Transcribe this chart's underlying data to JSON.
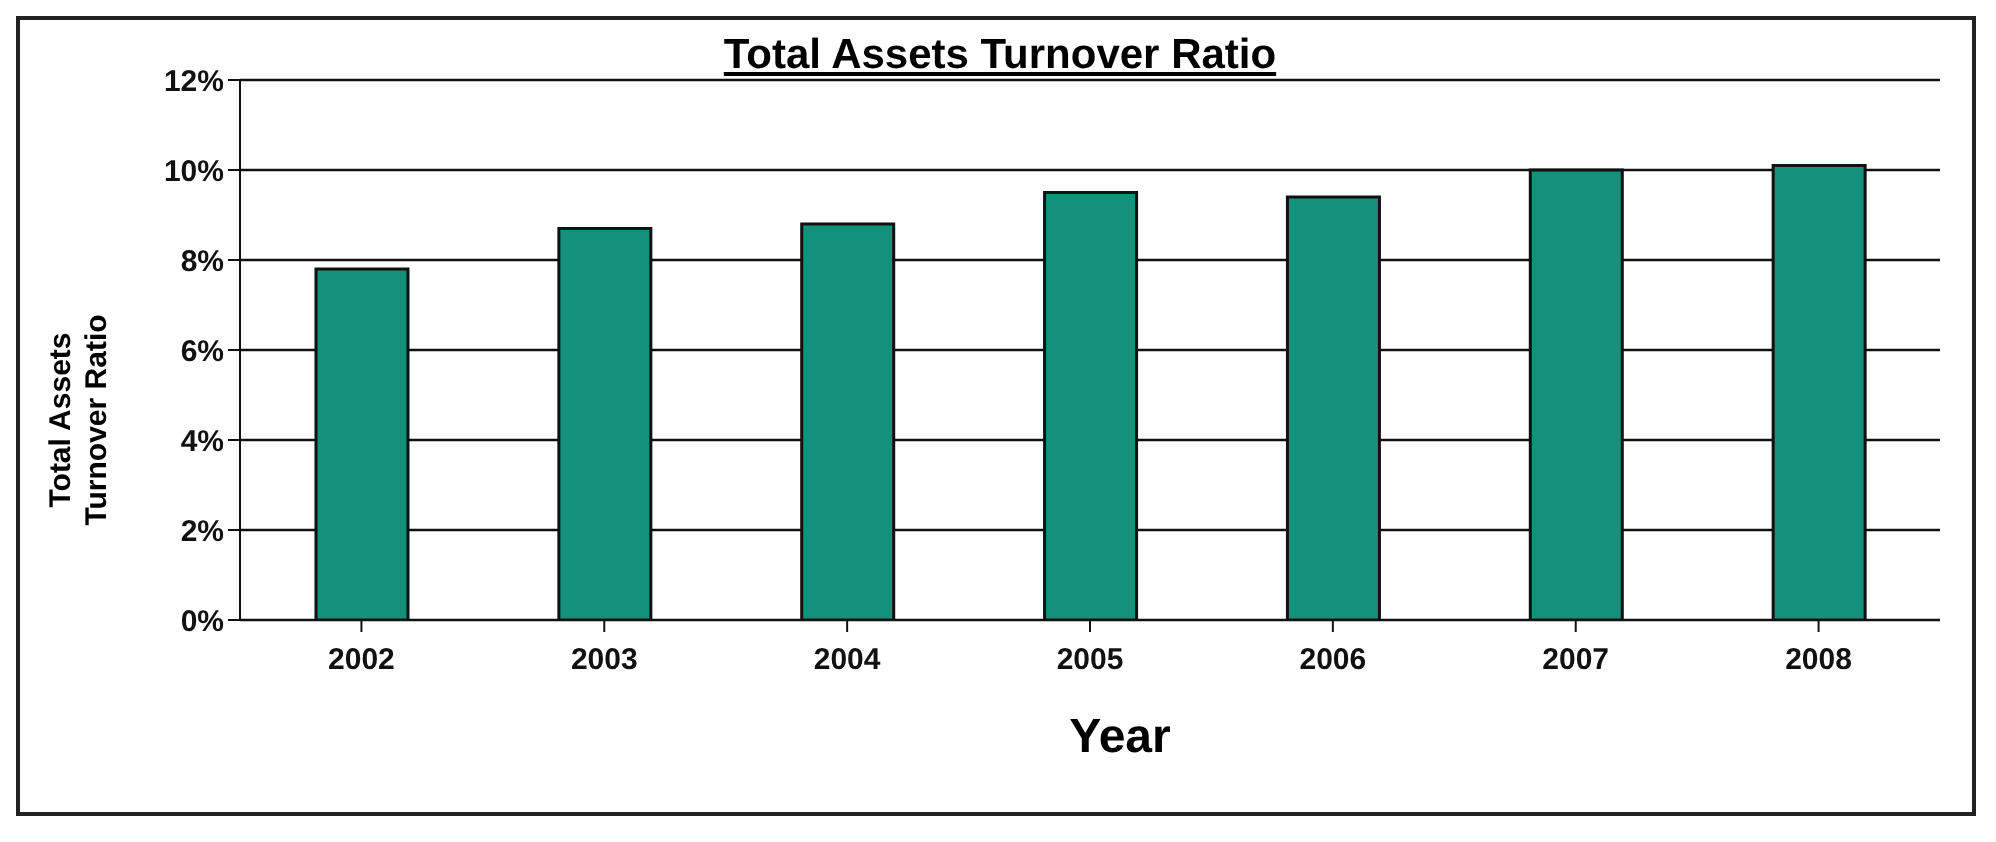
{
  "chart_data": {
    "type": "bar",
    "title": "Total Assets Turnover Ratio",
    "xlabel": "Year",
    "ylabel": "Total Assets Turnover Ratio",
    "categories": [
      "2002",
      "2003",
      "2004",
      "2005",
      "2006",
      "2007",
      "2008"
    ],
    "values": [
      7.8,
      8.7,
      8.8,
      9.5,
      9.4,
      10.0,
      10.1
    ],
    "color": "#13917b",
    "ylim": [
      0,
      12
    ],
    "yticks": [
      {
        "value": 0,
        "label": "0%"
      },
      {
        "value": 2,
        "label": "2%"
      },
      {
        "value": 4,
        "label": "4%"
      },
      {
        "value": 6,
        "label": "6%"
      },
      {
        "value": 8,
        "label": "8%"
      },
      {
        "value": 10,
        "label": "10%"
      },
      {
        "value": 12,
        "label": "12%"
      }
    ],
    "grid": "y",
    "legend": false
  }
}
